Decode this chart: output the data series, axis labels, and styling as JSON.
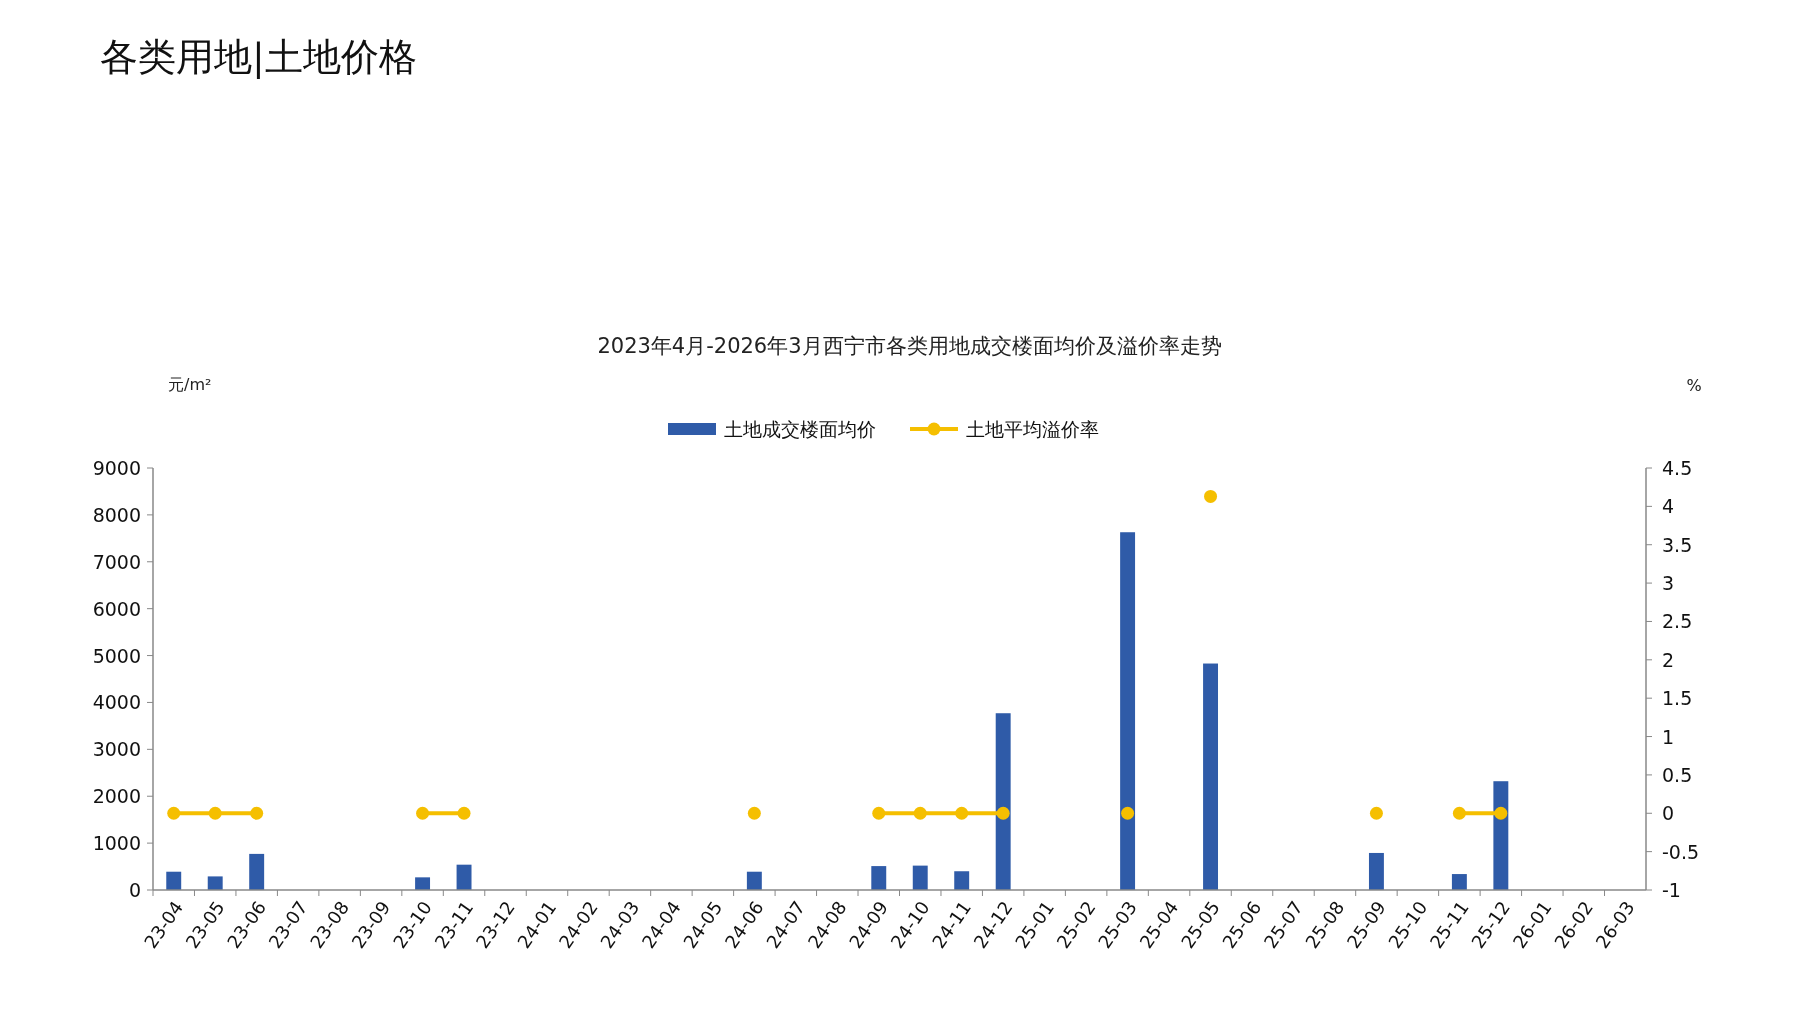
{
  "chart_data": {
    "type": "bar",
    "title": "各类用地|土地价格",
    "subtitle": "2023年4月-2026年3月西宁市各类用地成交楼面均价及溢价率走势",
    "ylabel": "元/m²",
    "y2label": "%",
    "categories": [
      "23-04",
      "23-05",
      "23-06",
      "23-07",
      "23-08",
      "23-09",
      "23-10",
      "23-11",
      "23-12",
      "24-01",
      "24-02",
      "24-03",
      "24-04",
      "24-05",
      "24-06",
      "24-07",
      "24-08",
      "24-09",
      "24-10",
      "24-11",
      "24-12",
      "25-01",
      "25-02",
      "25-03",
      "25-04",
      "25-05",
      "25-06",
      "25-07",
      "25-08",
      "25-09",
      "25-10",
      "25-11",
      "25-12",
      "26-01",
      "26-02",
      "26-03"
    ],
    "series": [
      {
        "name": "土地成交楼面均价",
        "color": "#2f5ba8",
        "values": [
          390,
          290,
          770,
          null,
          null,
          null,
          270,
          540,
          null,
          null,
          null,
          null,
          null,
          null,
          390,
          null,
          null,
          510,
          520,
          400,
          3770,
          null,
          null,
          7630,
          null,
          4830,
          null,
          null,
          null,
          790,
          null,
          340,
          2320,
          null,
          null,
          null
        ]
      },
      {
        "name": "土地平均溢价率",
        "type": "line",
        "axis": "y2",
        "color": "#f5bf00",
        "marker": "circle",
        "values": [
          0,
          0,
          0,
          null,
          null,
          null,
          0,
          0,
          null,
          null,
          null,
          null,
          null,
          null,
          0,
          null,
          null,
          0,
          0,
          0,
          0,
          null,
          null,
          0,
          null,
          4.13,
          null,
          null,
          null,
          0,
          null,
          0,
          0,
          null,
          null,
          null
        ]
      }
    ],
    "ylim": [
      0,
      9000
    ],
    "yticks": [
      0,
      1000,
      2000,
      3000,
      4000,
      5000,
      6000,
      7000,
      8000,
      9000
    ],
    "y2lim": [
      -1,
      4.5
    ],
    "y2ticks": [
      -1,
      -0.5,
      0,
      0.5,
      1,
      1.5,
      2,
      2.5,
      3,
      3.5,
      4,
      4.5
    ],
    "legend": "top",
    "grid": false
  }
}
